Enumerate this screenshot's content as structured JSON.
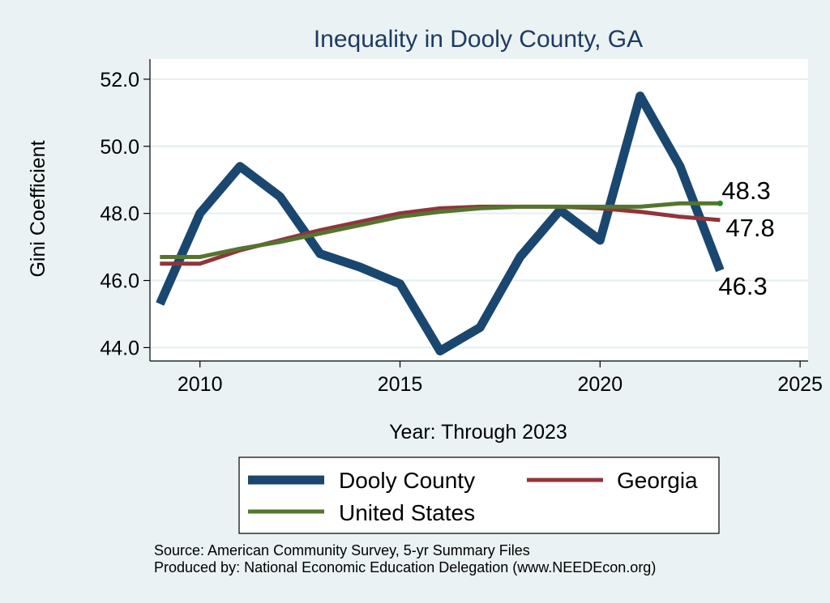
{
  "chart_data": {
    "type": "line",
    "title": "Inequality in Dooly County, GA",
    "xlabel": "Year: Through 2023",
    "ylabel": "Gini Coefficient",
    "xlim": [
      2008.75,
      2025.2
    ],
    "ylim": [
      43.6,
      52.6
    ],
    "xticks": [
      2010,
      2015,
      2020,
      2025
    ],
    "yticks": [
      44.0,
      46.0,
      48.0,
      50.0,
      52.0
    ],
    "ytick_labels": [
      "44.0",
      "46.0",
      "48.0",
      "50.0",
      "52.0"
    ],
    "x": [
      2009,
      2010,
      2011,
      2012,
      2013,
      2014,
      2015,
      2016,
      2017,
      2018,
      2019,
      2020,
      2021,
      2022,
      2023
    ],
    "series": [
      {
        "name": "Dooly County",
        "color": "#1a476f",
        "values": [
          45.3,
          48.0,
          49.4,
          48.5,
          46.8,
          46.4,
          45.9,
          43.9,
          44.6,
          46.7,
          48.1,
          47.2,
          51.5,
          49.4,
          46.3
        ],
        "end_label": "46.3"
      },
      {
        "name": "Georgia",
        "color": "#90353b",
        "values": [
          46.5,
          46.5,
          46.9,
          47.2,
          47.5,
          47.75,
          48.0,
          48.15,
          48.2,
          48.2,
          48.2,
          48.15,
          48.05,
          47.9,
          47.8
        ],
        "end_label": "47.8"
      },
      {
        "name": "United States",
        "color": "#55752f",
        "values": [
          46.7,
          46.7,
          46.95,
          47.15,
          47.4,
          47.65,
          47.9,
          48.05,
          48.15,
          48.2,
          48.2,
          48.2,
          48.2,
          48.3,
          48.3
        ],
        "end_label": "48.3"
      }
    ],
    "legend": {
      "position": "bottom",
      "entries": [
        "Dooly County",
        "Georgia",
        "United States"
      ]
    },
    "grid": true
  },
  "footer": {
    "source": "Source: American Community Survey, 5-yr Summary Files",
    "produced_by": "Produced by: National Economic Education Delegation (www.NEEDEcon.org)"
  }
}
